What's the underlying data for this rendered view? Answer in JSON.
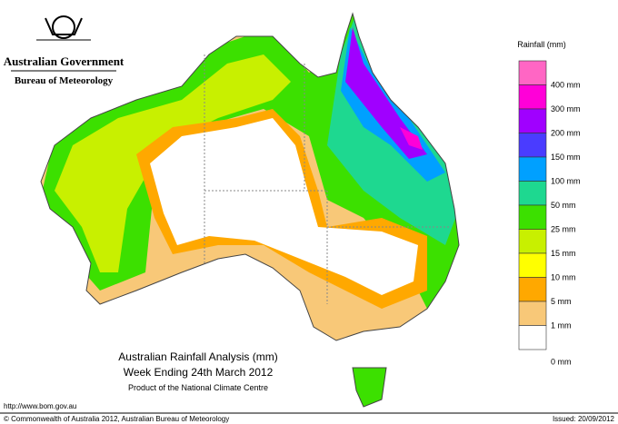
{
  "header": {
    "government": "Australian Government",
    "agency": "Bureau of Meteorology"
  },
  "legend": {
    "title": "Rainfall (mm)",
    "colors": [
      "#ff66c4",
      "#ff00d8",
      "#a000ff",
      "#4a3cff",
      "#00a0ff",
      "#1ed890",
      "#3ce000",
      "#c8f000",
      "#ffff00",
      "#ffa800",
      "#f8c878",
      "#ffffff"
    ],
    "labels": [
      "400 mm",
      "300 mm",
      "200 mm",
      "150 mm",
      "100 mm",
      "50 mm",
      "25 mm",
      "15 mm",
      "10 mm",
      "5 mm",
      "1 mm",
      "0 mm"
    ]
  },
  "title": {
    "line1": "Australian Rainfall Analysis (mm)",
    "line2": "Week Ending 24th March 2012",
    "line3": "Product of the National Climate Centre"
  },
  "footer": {
    "url": "http://www.bom.gov.au",
    "copyright": "© Commonwealth of Australia 2012, Australian Bureau of Meteorology",
    "issued": "Issued: 20/09/2012"
  }
}
